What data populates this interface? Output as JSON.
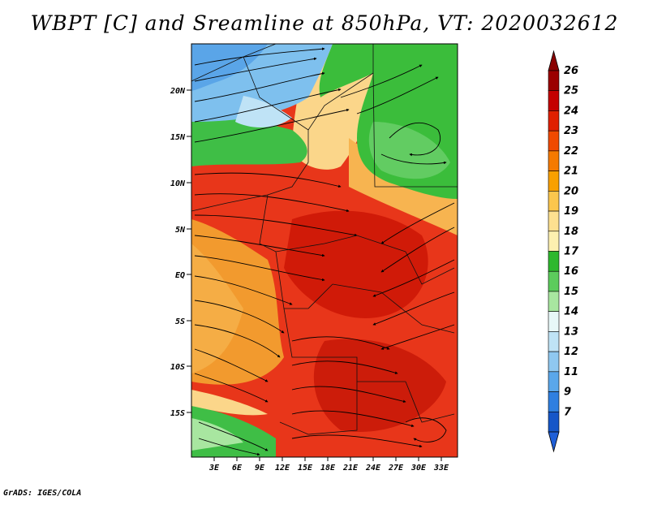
{
  "title": "WBPT [C] and Sreamline at 850hPa, VT: 2020032612",
  "footer": "GrADS: IGES/COLA",
  "map": {
    "lat_labels": [
      "20N",
      "15N",
      "10N",
      "5N",
      "EQ",
      "5S",
      "10S",
      "15S"
    ],
    "lon_labels": [
      "3E",
      "6E",
      "9E",
      "12E",
      "15E",
      "18E",
      "21E",
      "24E",
      "27E",
      "30E",
      "33E"
    ]
  },
  "colorbar": {
    "labels": [
      "26",
      "25",
      "24",
      "23",
      "22",
      "21",
      "20",
      "19",
      "18",
      "17",
      "16",
      "15",
      "14",
      "13",
      "12",
      "11",
      "9",
      "7"
    ],
    "colors": [
      "#9b0000",
      "#c40000",
      "#e02000",
      "#f04a00",
      "#f57a00",
      "#f8a000",
      "#fbc64d",
      "#fde090",
      "#fdf0b0",
      "#2eb82e",
      "#5ccc5c",
      "#a8e6a0",
      "#e8f8f8",
      "#bfe3f6",
      "#8fc8f0",
      "#5aa7ea",
      "#2f7fe0",
      "#1656c8"
    ],
    "top_arrow_color": "#8a0000",
    "bottom_arrow_color": "#1f5fd8"
  }
}
